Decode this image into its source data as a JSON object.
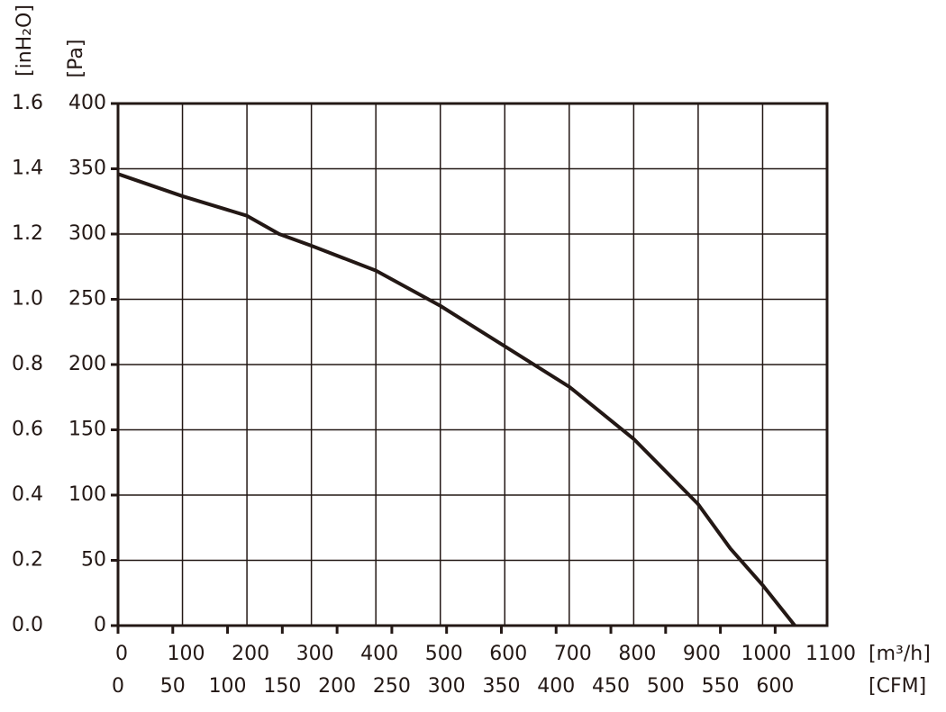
{
  "chart_data": {
    "type": "line",
    "x_label": "[m³/h]",
    "x2_label": "[CFM]",
    "y_label": "[Pa]",
    "y2_label": "[inH₂O]",
    "x": [
      0,
      100,
      200,
      250,
      300,
      400,
      500,
      600,
      700,
      800,
      900,
      950,
      1000,
      1050
    ],
    "series": [
      {
        "color": "#231815",
        "values": [
          346,
          329,
          314,
          300,
          291,
          272,
          245,
          214,
          183,
          143,
          93,
          59,
          31,
          0
        ]
      }
    ],
    "xlim": [
      0,
      1100
    ],
    "xticks": [
      0,
      100,
      200,
      300,
      400,
      500,
      600,
      700,
      800,
      900,
      1000,
      1100
    ],
    "x2lim": [
      0,
      647.4
    ],
    "x2ticks": [
      0,
      50,
      100,
      150,
      200,
      250,
      300,
      350,
      400,
      450,
      500,
      550,
      600
    ],
    "ylim": [
      0,
      400
    ],
    "yticks": [
      0,
      50,
      100,
      150,
      200,
      250,
      300,
      350,
      400
    ],
    "y2lim": [
      0,
      1.6
    ],
    "y2ticks": [
      {
        "value": 0,
        "label": "0.0"
      },
      0.2,
      0.4,
      0.6,
      0.8,
      {
        "value": 1.0,
        "label": "1.0"
      },
      1.2,
      1.4,
      1.6
    ],
    "grid": true
  }
}
